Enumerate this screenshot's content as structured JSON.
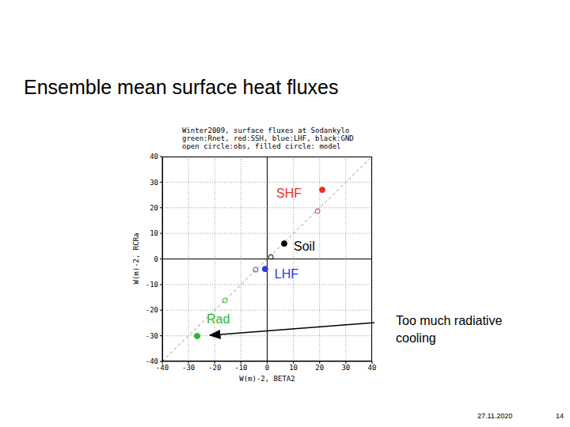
{
  "slide": {
    "title": "Ensemble mean surface heat fluxes",
    "date": "27.11.2020",
    "page": "14"
  },
  "chart_data": {
    "type": "scatter",
    "title": "Winter2009, surface fluxes at Sodankylo",
    "subtitle": [
      "green:Rnet, red:SSH, blue:LHF, black:GND",
      "open circle:obs, filled circle: model"
    ],
    "x_label": "W(m)-2, BETA2",
    "y_label": "W(m)-2, RCRa",
    "xlim": [
      -40,
      40
    ],
    "ylim": [
      -40,
      40
    ],
    "xticks": [
      -40,
      -30,
      -20,
      -10,
      0,
      10,
      20,
      30,
      40
    ],
    "yticks": [
      -40,
      -30,
      -20,
      -10,
      0,
      10,
      20,
      30,
      40
    ],
    "grid": true,
    "series": [
      {
        "name": "SHF",
        "color": "#e8312a",
        "points": [
          {
            "x": 21,
            "y": 27,
            "marker": "filled"
          },
          {
            "x": 19.2,
            "y": 18.7,
            "marker": "open"
          }
        ]
      },
      {
        "name": "Soil",
        "color": "#000000",
        "points": [
          {
            "x": 6.5,
            "y": 6,
            "marker": "filled"
          },
          {
            "x": 1.4,
            "y": 0.8,
            "marker": "open"
          }
        ]
      },
      {
        "name": "LHF",
        "color": "#2a3ce8",
        "points": [
          {
            "x": -0.8,
            "y": -3.9,
            "marker": "filled"
          },
          {
            "x": -4.4,
            "y": -4.2,
            "marker": "open"
          }
        ]
      },
      {
        "name": "Rad",
        "color": "#2db82d",
        "points": [
          {
            "x": -26.7,
            "y": -30.1,
            "marker": "filled"
          },
          {
            "x": -16.1,
            "y": -16.2,
            "marker": "open"
          }
        ]
      }
    ],
    "annotations": [
      {
        "text": "Too much radiative cooling",
        "target": "Rad"
      }
    ]
  }
}
